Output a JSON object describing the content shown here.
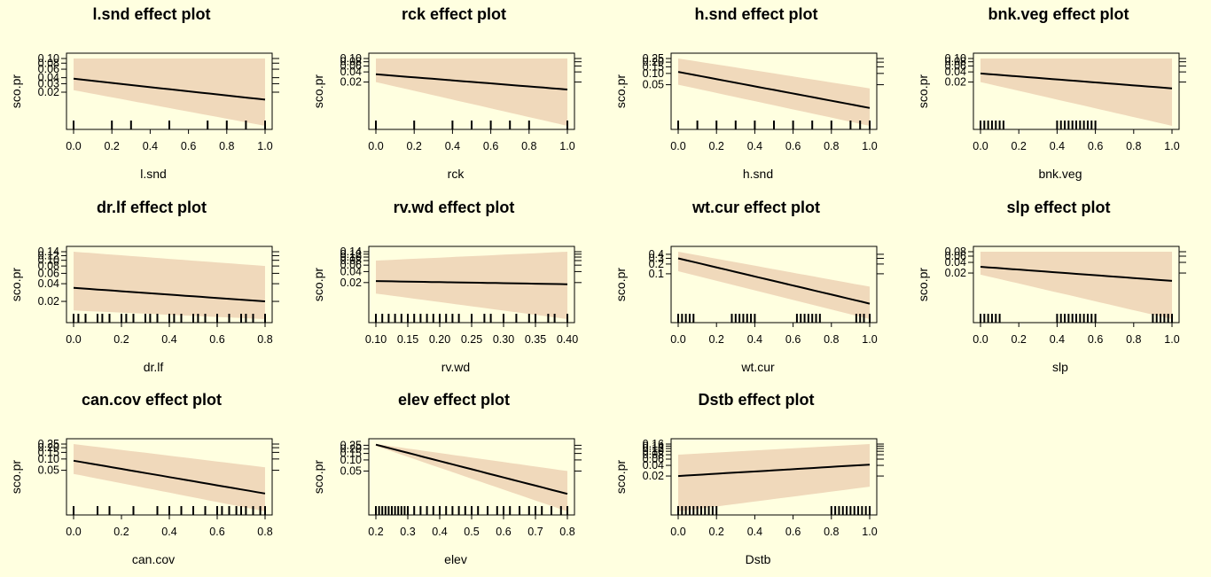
{
  "chart_data": [
    {
      "type": "line",
      "title": "l.snd effect plot",
      "xlabel": "l.snd",
      "ylabel": "sco.pr",
      "xlim": [
        0,
        1
      ],
      "xticks": [
        "0.0",
        "0.2",
        "0.4",
        "0.6",
        "0.8",
        "1.0"
      ],
      "ytick_labels": [
        "0.02",
        "0.03",
        "0.04",
        "0.06",
        "0.08",
        "0.10"
      ],
      "x": [
        0,
        1
      ],
      "fit": [
        0.038,
        0.014
      ],
      "lower": [
        0.022,
        0.004
      ],
      "upper": [
        0.1,
        0.1
      ],
      "rug": [
        0,
        0.2,
        0.3,
        0.5,
        0.7,
        0.8,
        0.9,
        1.0
      ]
    },
    {
      "type": "line",
      "title": "rck effect plot",
      "xlabel": "rck",
      "ylabel": "sco.pr",
      "xlim": [
        0,
        1
      ],
      "xticks": [
        "0.0",
        "0.2",
        "0.4",
        "0.6",
        "0.8",
        "1.0"
      ],
      "ytick_labels": [
        "0.02",
        "0.04",
        "0.06",
        "0.08",
        "0.10"
      ],
      "x": [
        0,
        1
      ],
      "fit": [
        0.034,
        0.012
      ],
      "lower": [
        0.02,
        0.001
      ],
      "upper": [
        0.1,
        0.1
      ],
      "rug": [
        0,
        0.2,
        0.4,
        0.5,
        0.6,
        0.7,
        0.8,
        1.0
      ]
    },
    {
      "type": "line",
      "title": "h.snd effect plot",
      "xlabel": "h.snd",
      "ylabel": "sco.pr",
      "xlim": [
        0,
        1
      ],
      "xticks": [
        "0.0",
        "0.2",
        "0.4",
        "0.6",
        "0.8",
        "1.0"
      ],
      "ytick_labels": [
        "0.05",
        "0.10",
        "0.15",
        "0.20",
        "0.25"
      ],
      "x": [
        0,
        1
      ],
      "fit": [
        0.11,
        0.012
      ],
      "lower": [
        0.05,
        0.004
      ],
      "upper": [
        0.25,
        0.04
      ],
      "rug": [
        0,
        0.1,
        0.2,
        0.3,
        0.4,
        0.5,
        0.6,
        0.7,
        0.8,
        0.9,
        0.95,
        1.0
      ]
    },
    {
      "type": "line",
      "title": "bnk.veg effect plot",
      "xlabel": "bnk.veg",
      "ylabel": "sco.pr",
      "xlim": [
        0,
        1
      ],
      "xticks": [
        "0.0",
        "0.2",
        "0.4",
        "0.6",
        "0.8",
        "1.0"
      ],
      "ytick_labels": [
        "0.02",
        "0.04",
        "0.06",
        "0.08",
        "0.10"
      ],
      "x": [
        0,
        1
      ],
      "fit": [
        0.036,
        0.013
      ],
      "lower": [
        0.02,
        0.001
      ],
      "upper": [
        0.1,
        0.1
      ],
      "rug": [
        0,
        0.02,
        0.04,
        0.06,
        0.08,
        0.1,
        0.12,
        0.4,
        0.42,
        0.44,
        0.46,
        0.48,
        0.5,
        0.52,
        0.54,
        0.56,
        0.58,
        0.6
      ]
    },
    {
      "type": "line",
      "title": "dr.lf effect plot",
      "xlabel": "dr.lf",
      "ylabel": "sco.pr",
      "xlim": [
        0,
        0.8
      ],
      "xticks": [
        "0.0",
        "0.2",
        "0.4",
        "0.6",
        "0.8"
      ],
      "ytick_labels": [
        "0.02",
        "0.04",
        "0.06",
        "0.08",
        "0.10",
        "0.12",
        "0.14"
      ],
      "x": [
        0,
        0.8
      ],
      "fit": [
        0.034,
        0.02
      ],
      "lower": [
        0.014,
        0.01
      ],
      "upper": [
        0.14,
        0.08
      ],
      "rug": [
        0,
        0.02,
        0.05,
        0.1,
        0.12,
        0.15,
        0.2,
        0.22,
        0.25,
        0.3,
        0.32,
        0.35,
        0.4,
        0.42,
        0.45,
        0.5,
        0.52,
        0.55,
        0.6,
        0.65,
        0.7,
        0.72,
        0.75,
        0.8
      ]
    },
    {
      "type": "line",
      "title": "rv.wd effect plot",
      "xlabel": "rv.wd",
      "ylabel": "sco.pr",
      "xlim": [
        0.1,
        0.4
      ],
      "xticks": [
        "0.10",
        "0.15",
        "0.20",
        "0.25",
        "0.30",
        "0.35",
        "0.40"
      ],
      "ytick_labels": [
        "0.02",
        "0.04",
        "0.06",
        "0.08",
        "0.10",
        "0.12",
        "0.14"
      ],
      "x": [
        0.1,
        0.4
      ],
      "fit": [
        0.022,
        0.018
      ],
      "lower": [
        0.01,
        0.002
      ],
      "upper": [
        0.08,
        0.14
      ],
      "rug": [
        0.1,
        0.11,
        0.12,
        0.13,
        0.14,
        0.15,
        0.16,
        0.17,
        0.18,
        0.19,
        0.2,
        0.21,
        0.22,
        0.23,
        0.25,
        0.27,
        0.28,
        0.3,
        0.32,
        0.34,
        0.35,
        0.37,
        0.38,
        0.4
      ]
    },
    {
      "type": "line",
      "title": "wt.cur effect plot",
      "xlabel": "wt.cur",
      "ylabel": "sco.pr",
      "xlim": [
        0,
        1
      ],
      "xticks": [
        "0.0",
        "0.2",
        "0.4",
        "0.6",
        "0.8",
        "1.0"
      ],
      "ytick_labels": [
        "0.1",
        "0.2",
        "0.3",
        "0.4"
      ],
      "x": [
        0,
        1
      ],
      "fit": [
        0.3,
        0.012
      ],
      "lower": [
        0.12,
        0.004
      ],
      "upper": [
        0.48,
        0.04
      ],
      "rug": [
        0,
        0.02,
        0.04,
        0.06,
        0.08,
        0.28,
        0.3,
        0.32,
        0.34,
        0.36,
        0.38,
        0.4,
        0.62,
        0.64,
        0.66,
        0.68,
        0.7,
        0.72,
        0.74,
        0.93,
        0.95,
        0.97,
        1.0
      ]
    },
    {
      "type": "line",
      "title": "slp effect plot",
      "xlabel": "slp",
      "ylabel": "sco.pr",
      "xlim": [
        0,
        1
      ],
      "xticks": [
        "0.0",
        "0.2",
        "0.4",
        "0.6",
        "0.8",
        "1.0"
      ],
      "ytick_labels": [
        "0.02",
        "0.04",
        "0.06",
        "0.08"
      ],
      "x": [
        0,
        1
      ],
      "fit": [
        0.03,
        0.012
      ],
      "lower": [
        0.018,
        0.001
      ],
      "upper": [
        0.08,
        0.08
      ],
      "rug": [
        0,
        0.02,
        0.04,
        0.06,
        0.08,
        0.1,
        0.4,
        0.42,
        0.44,
        0.46,
        0.48,
        0.5,
        0.52,
        0.54,
        0.56,
        0.58,
        0.6,
        0.9,
        0.92,
        0.94,
        0.96,
        0.98,
        1.0
      ]
    },
    {
      "type": "line",
      "title": "can.cov effect plot",
      "xlabel": "can.cov",
      "ylabel": "sco.pr",
      "xlim": [
        0,
        0.8
      ],
      "xticks": [
        "0.0",
        "0.2",
        "0.4",
        "0.6",
        "0.8"
      ],
      "ytick_labels": [
        "0.05",
        "0.10",
        "0.15",
        "0.20",
        "0.25"
      ],
      "x": [
        0,
        0.8
      ],
      "fit": [
        0.09,
        0.012
      ],
      "lower": [
        0.04,
        0.004
      ],
      "upper": [
        0.25,
        0.06
      ],
      "rug": [
        0,
        0.1,
        0.15,
        0.25,
        0.35,
        0.4,
        0.45,
        0.5,
        0.55,
        0.6,
        0.62,
        0.65,
        0.68,
        0.7,
        0.72,
        0.75,
        0.78,
        0.8
      ]
    },
    {
      "type": "line",
      "title": "elev effect plot",
      "xlabel": "elev",
      "ylabel": "sco.pr",
      "xlim": [
        0.2,
        0.8
      ],
      "xticks": [
        "0.2",
        "0.3",
        "0.4",
        "0.5",
        "0.6",
        "0.7",
        "0.8"
      ],
      "ytick_labels": [
        "0.05",
        "0.10",
        "0.15",
        "0.20",
        "0.25"
      ],
      "x": [
        0.2,
        0.8
      ],
      "fit": [
        0.26,
        0.012
      ],
      "lower": [
        0.24,
        0.004
      ],
      "upper": [
        0.27,
        0.05
      ],
      "rug": [
        0.2,
        0.21,
        0.22,
        0.23,
        0.24,
        0.25,
        0.26,
        0.27,
        0.28,
        0.29,
        0.3,
        0.32,
        0.34,
        0.36,
        0.38,
        0.4,
        0.42,
        0.44,
        0.46,
        0.48,
        0.5,
        0.52,
        0.55,
        0.58,
        0.6,
        0.62,
        0.65,
        0.68,
        0.7,
        0.72,
        0.75,
        0.78,
        0.8
      ]
    },
    {
      "type": "line",
      "title": "Dstb effect plot",
      "xlabel": "Dstb",
      "ylabel": "sco.pr",
      "xlim": [
        0,
        1
      ],
      "xticks": [
        "0.0",
        "0.2",
        "0.4",
        "0.6",
        "0.8",
        "1.0"
      ],
      "ytick_labels": [
        "0.02",
        "0.04",
        "0.06",
        "0.08",
        "0.10",
        "0.12",
        "0.14",
        "0.16"
      ],
      "x": [
        0,
        1
      ],
      "fit": [
        0.02,
        0.042
      ],
      "lower": [
        0.002,
        0.01
      ],
      "upper": [
        0.08,
        0.16
      ],
      "rug": [
        0,
        0.02,
        0.04,
        0.06,
        0.08,
        0.1,
        0.12,
        0.14,
        0.16,
        0.18,
        0.2,
        0.8,
        0.82,
        0.84,
        0.86,
        0.88,
        0.9,
        0.92,
        0.94,
        0.96,
        0.98,
        1.0
      ]
    }
  ],
  "colors": {
    "band": "#f0d9bb",
    "line": "#000000",
    "background": "#ffffe0"
  }
}
